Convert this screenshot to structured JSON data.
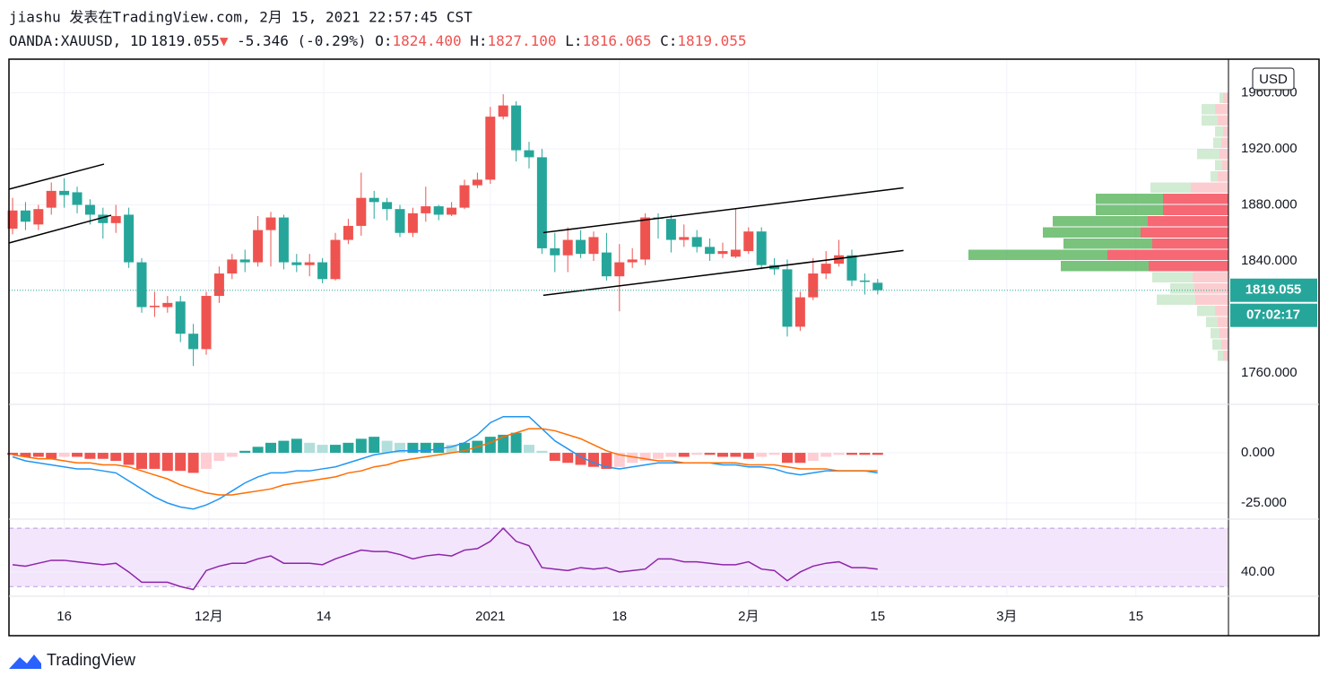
{
  "header": {
    "line1": "jiashu 发表在TradingView.com, 2月 15, 2021 22:57:45 CST",
    "symbol": "OANDA:XAUUSD, 1D",
    "last": "1819.055",
    "arrow": "▼",
    "change": "-5.346 (-0.29%)",
    "ohlc": [
      {
        "key": "O:",
        "value": "1824.400"
      },
      {
        "key": "H:",
        "value": "1827.100"
      },
      {
        "key": "L:",
        "value": "1816.065"
      },
      {
        "key": "C:",
        "value": "1819.055"
      }
    ]
  },
  "footer": {
    "brand": "TradingView"
  },
  "chart_data": [
    {
      "type": "candlestick",
      "up_color": "#ef5350",
      "down_color": "#26a69a",
      "open": [
        1863,
        1876,
        1866,
        1878,
        1890,
        1889,
        1880,
        1873,
        1867,
        1873,
        1839,
        1807,
        1807,
        1811,
        1788,
        1777,
        1815,
        1831,
        1841,
        1839,
        1862,
        1871,
        1839,
        1837,
        1839,
        1827,
        1855,
        1865,
        1885,
        1882,
        1877,
        1860,
        1874,
        1879,
        1873,
        1878,
        1894,
        1898,
        1943,
        1951,
        1919,
        1914,
        1849,
        1844,
        1855,
        1845,
        1846,
        1829,
        1839,
        1841,
        1871,
        1870,
        1855,
        1857,
        1850,
        1845,
        1843,
        1847,
        1861,
        1837,
        1834,
        1793,
        1814,
        1831,
        1838,
        1844,
        1826,
        1824.4
      ],
      "high": [
        1885,
        1882,
        1880,
        1896,
        1899,
        1893,
        1884,
        1878,
        1880,
        1878,
        1842,
        1818,
        1815,
        1815,
        1795,
        1818,
        1836,
        1845,
        1848,
        1872,
        1875,
        1873,
        1845,
        1845,
        1842,
        1860,
        1870,
        1903,
        1890,
        1885,
        1880,
        1878,
        1893,
        1880,
        1882,
        1898,
        1903,
        1950,
        1959,
        1954,
        1925,
        1920,
        1860,
        1864,
        1862,
        1861,
        1860,
        1852,
        1849,
        1874,
        1874,
        1873,
        1866,
        1862,
        1856,
        1853,
        1877,
        1864,
        1864,
        1842,
        1841,
        1818,
        1842,
        1847,
        1855,
        1848,
        1831,
        1827.1
      ],
      "low": [
        1859,
        1862,
        1862,
        1873,
        1878,
        1874,
        1866,
        1856,
        1860,
        1835,
        1803,
        1800,
        1803,
        1782,
        1765,
        1773,
        1810,
        1827,
        1832,
        1836,
        1836,
        1834,
        1832,
        1829,
        1824,
        1826,
        1852,
        1858,
        1870,
        1869,
        1857,
        1857,
        1868,
        1869,
        1872,
        1877,
        1892,
        1895,
        1941,
        1911,
        1906,
        1845,
        1832,
        1832,
        1842,
        1840,
        1826,
        1804,
        1835,
        1837,
        1856,
        1846,
        1850,
        1846,
        1840,
        1842,
        1842,
        1845,
        1834,
        1830,
        1786,
        1790,
        1812,
        1827,
        1836,
        1822,
        1816,
        1816.065
      ],
      "close": [
        1876,
        1868,
        1877,
        1890,
        1887,
        1880,
        1873,
        1867,
        1872,
        1839,
        1807,
        1808,
        1810,
        1788,
        1777,
        1815,
        1831,
        1841,
        1839,
        1862,
        1871,
        1839,
        1837,
        1839,
        1827,
        1855,
        1865,
        1885,
        1882,
        1877,
        1860,
        1874,
        1879,
        1873,
        1878,
        1894,
        1898,
        1943,
        1951,
        1919,
        1914,
        1849,
        1844,
        1855,
        1845,
        1857,
        1829,
        1839,
        1841,
        1871,
        1870,
        1855,
        1857,
        1850,
        1845,
        1847,
        1848,
        1861,
        1837,
        1834,
        1793,
        1814,
        1831,
        1838,
        1844,
        1826,
        1825,
        1819.055
      ],
      "xlim": [
        -0.28,
        94.17
      ],
      "xticks": [
        {
          "value": 4,
          "label": "16"
        },
        {
          "value": 15.2,
          "label": "12月"
        },
        {
          "value": 24.1,
          "label": "14"
        },
        {
          "value": 37,
          "label": "2021"
        },
        {
          "value": 47,
          "label": "18"
        },
        {
          "value": 57,
          "label": "2月"
        },
        {
          "value": 67,
          "label": "15"
        },
        {
          "value": 77,
          "label": "3月"
        },
        {
          "value": 87,
          "label": "15"
        }
      ],
      "ylim": [
        1738.2,
        1983.4
      ],
      "yticks": [
        {
          "value": 1960,
          "label": "1960.000"
        },
        {
          "value": 1920,
          "label": "1920.000"
        },
        {
          "value": 1880,
          "label": "1880.000"
        },
        {
          "value": 1840,
          "label": "1840.000"
        },
        {
          "value": 1760,
          "label": "1760.000"
        }
      ],
      "grid": true,
      "currency": "USD",
      "last_price": 1819.055,
      "countdown": "07:02:17",
      "drawings": [
        {
          "points": [
            [
              -0.28,
              1891.2
            ],
            [
              7.08,
              1909.1
            ]
          ]
        },
        {
          "points": [
            [
              -0.28,
              1852.8
            ],
            [
              7.64,
              1872.6
            ]
          ]
        },
        {
          "points": [
            [
              41.1,
              1860.2
            ],
            [
              69.0,
              1892.2
            ]
          ]
        },
        {
          "points": [
            [
              41.1,
              1815.4
            ],
            [
              69.0,
              1847.4
            ]
          ]
        }
      ],
      "volume_profile": {
        "prices": [
          1956,
          1948,
          1940,
          1932,
          1924,
          1916,
          1908,
          1900,
          1892,
          1884,
          1876,
          1868,
          1860,
          1852,
          1844,
          1836,
          1828,
          1820,
          1812,
          1804,
          1796,
          1788,
          1780,
          1772
        ],
        "up": [
          4,
          15,
          18,
          9,
          9,
          25,
          8,
          8,
          45,
          75,
          75,
          106,
          109,
          99,
          155,
          98,
          45,
          27,
          43,
          20,
          13,
          10,
          10,
          6
        ],
        "down": [
          6,
          15,
          12,
          6,
          8,
          10,
          7,
          12,
          42,
          73,
          73,
          90,
          98,
          85,
          135,
          89,
          40,
          38,
          37,
          15,
          12,
          10,
          8,
          6
        ],
        "value_area": [
          1832,
          1888
        ],
        "up_color": "#4caf50",
        "down_color": "#f23645"
      }
    },
    {
      "type": "macd",
      "ylim": [
        -32.6,
        23.7
      ],
      "yticks": [
        {
          "value": 0,
          "label": "0.000"
        },
        {
          "value": -25,
          "label": "-25.000"
        }
      ],
      "histogram": {
        "colors": [
          "#26a69a",
          "#b2dfdb",
          "#ffcdd2",
          "#ef5350"
        ],
        "values": [
          -1,
          -2,
          -2,
          -3,
          -2,
          -2,
          -3,
          -3,
          -4,
          -6,
          -8,
          -8,
          -9,
          -9,
          -10,
          -8,
          -4,
          -2,
          1,
          3,
          5,
          6,
          7,
          5,
          4,
          4,
          5,
          7,
          8,
          6,
          5,
          5,
          5,
          5,
          4,
          5,
          6,
          8,
          9,
          10,
          4,
          1,
          -4,
          -5,
          -6,
          -7,
          -8,
          -7,
          -5,
          -4,
          -3,
          -2,
          -2,
          -1,
          -1,
          -2,
          -2,
          -3,
          -2,
          -1,
          -5,
          -5,
          -4,
          -2,
          -1,
          -1,
          -1,
          -1
        ]
      },
      "series": [
        {
          "color": "#2196f3",
          "values": [
            -2,
            -4,
            -5,
            -6,
            -7,
            -8,
            -8,
            -9,
            -10,
            -14,
            -18,
            -22,
            -25,
            -27,
            -28,
            -26,
            -23,
            -19,
            -15,
            -12,
            -10,
            -10,
            -9,
            -9,
            -8,
            -7,
            -5,
            -3,
            -1,
            0,
            1,
            1,
            1,
            2,
            3,
            5,
            9,
            15,
            18,
            18,
            18,
            12,
            6,
            2,
            -2,
            -5,
            -7,
            -8,
            -7,
            -6,
            -5,
            -5,
            -5,
            -5,
            -5,
            -6,
            -6,
            -7,
            -7,
            -8,
            -10,
            -11,
            -10,
            -9,
            -9,
            -9,
            -9,
            -10
          ]
        },
        {
          "color": "#ff6d00",
          "values": [
            -1,
            -2,
            -3,
            -3,
            -4,
            -5,
            -5,
            -6,
            -6,
            -7,
            -9,
            -11,
            -13,
            -16,
            -18,
            -20,
            -21,
            -21,
            -20,
            -19,
            -18,
            -16,
            -15,
            -14,
            -13,
            -12,
            -10,
            -9,
            -7,
            -6,
            -4,
            -3,
            -2,
            -1,
            0,
            1,
            3,
            5,
            8,
            10,
            12,
            12,
            11,
            9,
            7,
            4,
            1,
            -1,
            -2,
            -3,
            -4,
            -4,
            -5,
            -5,
            -5,
            -5,
            -5,
            -6,
            -6,
            -6,
            -7,
            -8,
            -8,
            -8,
            -9,
            -9,
            -9,
            -9
          ]
        }
      ]
    },
    {
      "type": "line",
      "ylim": [
        24,
        75
      ],
      "yticks": [
        {
          "value": 40,
          "label": "40.00"
        }
      ],
      "bands": [
        30,
        70
      ],
      "band_color": "#f3e5fc",
      "series": [
        {
          "color": "#8e24aa",
          "values": [
            45,
            44,
            46,
            48,
            48,
            47,
            46,
            45,
            46,
            40,
            33,
            33,
            33,
            30,
            28,
            41,
            44,
            46,
            46,
            49,
            51,
            46,
            46,
            46,
            45,
            49,
            52,
            55,
            54,
            54,
            52,
            49,
            51,
            52,
            51,
            55,
            56,
            61,
            70,
            61,
            58,
            43,
            42,
            41,
            43,
            42,
            43,
            40,
            41,
            42,
            49,
            49,
            47,
            47,
            46,
            45,
            45,
            47,
            42,
            41,
            34,
            40,
            44,
            46,
            47,
            43,
            43,
            42
          ]
        }
      ]
    }
  ]
}
